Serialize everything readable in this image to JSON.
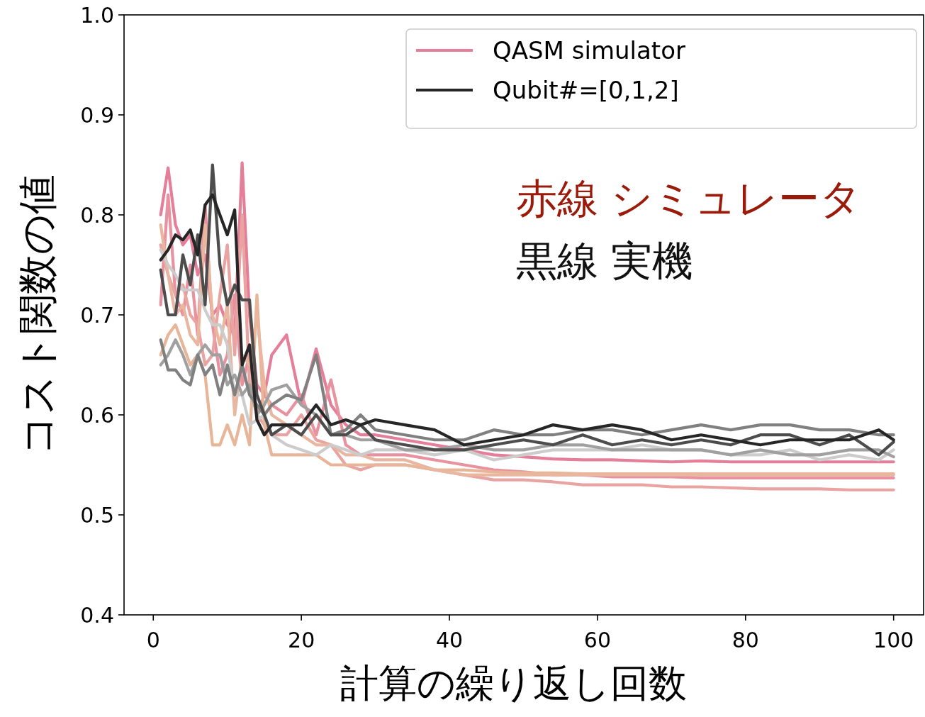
{
  "chart_data": {
    "type": "line",
    "xlabel": "計算の繰り返し回数",
    "ylabel": "コスト関数の値",
    "x": [
      1,
      2,
      3,
      4,
      5,
      6,
      7,
      8,
      9,
      10,
      11,
      12,
      13,
      14,
      15,
      16,
      18,
      20,
      22,
      24,
      26,
      28,
      30,
      34,
      38,
      42,
      46,
      50,
      54,
      58,
      62,
      66,
      70,
      74,
      78,
      82,
      86,
      90,
      94,
      98,
      100
    ],
    "xlim": [
      -3.95,
      104.05
    ],
    "xticks": [
      0,
      20,
      40,
      60,
      80,
      100
    ],
    "ylim": [
      0.4,
      1.0
    ],
    "yticks": [
      0.4,
      0.5,
      0.6,
      0.7,
      0.8,
      0.9,
      {
        "value": 1.0,
        "label": "1.0"
      }
    ],
    "grid": false,
    "legend": "top right",
    "line_style": "solid",
    "marker": "none",
    "annotations": [
      "赤線 シミュレータ",
      "黒線 実機"
    ],
    "series": [
      {
        "name": "QASM simulator",
        "color": "#e57f99",
        "values": [
          0.8,
          0.847,
          0.79,
          0.77,
          0.78,
          0.74,
          0.76,
          0.7,
          0.71,
          0.69,
          0.68,
          0.852,
          0.7,
          0.63,
          0.62,
          0.66,
          0.68,
          0.61,
          0.666,
          0.61,
          0.59,
          0.58,
          0.58,
          0.575,
          0.57,
          0.565,
          0.56,
          0.558,
          0.556,
          0.555,
          0.555,
          0.554,
          0.553,
          0.554,
          0.553,
          0.553,
          0.553,
          0.553,
          0.553,
          0.553,
          0.553
        ]
      },
      {
        "color": "#e8929f",
        "values": [
          0.71,
          0.82,
          0.72,
          0.7,
          0.75,
          0.68,
          0.81,
          0.69,
          0.64,
          0.66,
          0.72,
          0.63,
          0.66,
          0.6,
          0.62,
          0.61,
          0.6,
          0.62,
          0.58,
          0.635,
          0.57,
          0.56,
          0.56,
          0.56,
          0.555,
          0.55,
          0.545,
          0.543,
          0.54,
          0.54,
          0.538,
          0.538,
          0.538,
          0.537,
          0.537,
          0.537,
          0.537,
          0.537,
          0.537,
          0.537,
          0.537
        ]
      },
      {
        "color": "#e9a3a0",
        "values": [
          0.77,
          0.74,
          0.72,
          0.73,
          0.7,
          0.69,
          0.65,
          0.66,
          0.72,
          0.77,
          0.66,
          0.8,
          0.63,
          0.6,
          0.59,
          0.58,
          0.58,
          0.6,
          0.575,
          0.57,
          0.55,
          0.545,
          0.55,
          0.55,
          0.545,
          0.54,
          0.535,
          0.535,
          0.533,
          0.53,
          0.53,
          0.53,
          0.528,
          0.528,
          0.527,
          0.526,
          0.526,
          0.526,
          0.525,
          0.525,
          0.525
        ]
      },
      {
        "color": "#e8b598",
        "values": [
          0.66,
          0.68,
          0.69,
          0.67,
          0.65,
          0.66,
          0.64,
          0.57,
          0.57,
          0.59,
          0.57,
          0.6,
          0.57,
          0.72,
          0.59,
          0.56,
          0.56,
          0.56,
          0.56,
          0.55,
          0.55,
          0.55,
          0.55,
          0.55,
          0.545,
          0.545,
          0.543,
          0.542,
          0.542,
          0.541,
          0.541,
          0.541,
          0.541,
          0.541,
          0.541,
          0.541,
          0.541,
          0.541,
          0.541,
          0.541,
          0.541
        ]
      },
      {
        "color": "#e9b6a0",
        "values": [
          0.79,
          0.74,
          0.7,
          0.71,
          0.68,
          0.67,
          0.79,
          0.7,
          0.67,
          0.71,
          0.6,
          0.66,
          0.65,
          0.7,
          0.63,
          0.6,
          0.59,
          0.58,
          0.57,
          0.57,
          0.56,
          0.56,
          0.555,
          0.555,
          0.545,
          0.54,
          0.54,
          0.54,
          0.54,
          0.54,
          0.54,
          0.54,
          0.54,
          0.54,
          0.54,
          0.54,
          0.54,
          0.54,
          0.54,
          0.54,
          0.54
        ]
      },
      {
        "color": "#cccccc",
        "values": [
          0.765,
          0.75,
          0.74,
          0.725,
          0.725,
          0.725,
          0.705,
          0.69,
          0.69,
          0.67,
          0.62,
          0.62,
          0.59,
          0.595,
          0.6,
          0.58,
          0.57,
          0.565,
          0.56,
          0.57,
          0.565,
          0.56,
          0.565,
          0.565,
          0.56,
          0.565,
          0.555,
          0.56,
          0.565,
          0.565,
          0.565,
          0.57,
          0.565,
          0.565,
          0.56,
          0.56,
          0.565,
          0.555,
          0.56,
          0.555,
          0.565
        ]
      },
      {
        "color": "#a0a0a0",
        "values": [
          0.65,
          0.66,
          0.675,
          0.66,
          0.64,
          0.66,
          0.67,
          0.66,
          0.66,
          0.63,
          0.64,
          0.62,
          0.63,
          0.6,
          0.61,
          0.625,
          0.63,
          0.61,
          0.6,
          0.58,
          0.58,
          0.575,
          0.575,
          0.565,
          0.565,
          0.57,
          0.565,
          0.565,
          0.57,
          0.57,
          0.565,
          0.565,
          0.565,
          0.565,
          0.56,
          0.565,
          0.56,
          0.56,
          0.565,
          0.565,
          0.558
        ]
      },
      {
        "color": "#808080",
        "values": [
          0.675,
          0.645,
          0.645,
          0.635,
          0.63,
          0.66,
          0.64,
          0.65,
          0.62,
          0.65,
          0.62,
          0.65,
          0.62,
          0.61,
          0.6,
          0.61,
          0.62,
          0.615,
          0.66,
          0.58,
          0.585,
          0.6,
          0.585,
          0.58,
          0.575,
          0.575,
          0.585,
          0.58,
          0.58,
          0.585,
          0.585,
          0.58,
          0.585,
          0.59,
          0.585,
          0.59,
          0.59,
          0.585,
          0.585,
          0.58,
          0.58
        ]
      },
      {
        "color": "#4d4d4d",
        "values": [
          0.745,
          0.7,
          0.7,
          0.76,
          0.73,
          0.78,
          0.71,
          0.85,
          0.75,
          0.71,
          0.73,
          0.715,
          0.715,
          0.62,
          0.6,
          0.58,
          0.59,
          0.58,
          0.6,
          0.58,
          0.58,
          0.59,
          0.575,
          0.57,
          0.565,
          0.565,
          0.57,
          0.575,
          0.57,
          0.58,
          0.57,
          0.575,
          0.57,
          0.575,
          0.57,
          0.58,
          0.58,
          0.57,
          0.58,
          0.56,
          0.573
        ]
      },
      {
        "name": "Qubit#=[0,1,2]",
        "color": "#262626",
        "values": [
          0.755,
          0.765,
          0.78,
          0.775,
          0.785,
          0.76,
          0.81,
          0.82,
          0.8,
          0.78,
          0.805,
          0.65,
          0.67,
          0.595,
          0.58,
          0.59,
          0.59,
          0.59,
          0.61,
          0.59,
          0.595,
          0.59,
          0.595,
          0.59,
          0.585,
          0.57,
          0.575,
          0.58,
          0.59,
          0.585,
          0.59,
          0.585,
          0.575,
          0.58,
          0.575,
          0.57,
          0.575,
          0.575,
          0.575,
          0.585,
          0.575
        ]
      }
    ]
  }
}
